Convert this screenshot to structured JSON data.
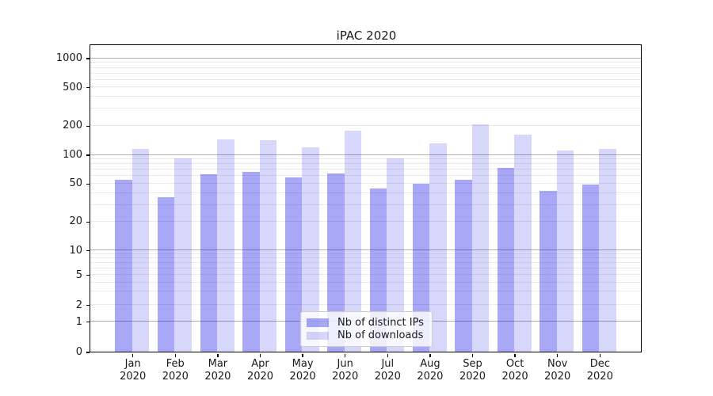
{
  "figure": {
    "background": "#ffffff"
  },
  "chart_data": {
    "type": "bar",
    "title": "iPAC 2020",
    "x_categories": [
      {
        "month": "Jan",
        "year": "2020"
      },
      {
        "month": "Feb",
        "year": "2020"
      },
      {
        "month": "Mar",
        "year": "2020"
      },
      {
        "month": "Apr",
        "year": "2020"
      },
      {
        "month": "May",
        "year": "2020"
      },
      {
        "month": "Jun",
        "year": "2020"
      },
      {
        "month": "Jul",
        "year": "2020"
      },
      {
        "month": "Aug",
        "year": "2020"
      },
      {
        "month": "Sep",
        "year": "2020"
      },
      {
        "month": "Oct",
        "year": "2020"
      },
      {
        "month": "Nov",
        "year": "2020"
      },
      {
        "month": "Dec",
        "year": "2020"
      }
    ],
    "series": [
      {
        "name": "Nb of distinct IPs",
        "color": "#0000e6",
        "alpha": 0.34,
        "solid_hex": "#a8a8f6",
        "values": [
          54,
          36,
          62,
          66,
          58,
          64,
          44,
          50,
          54,
          73,
          42,
          49
        ]
      },
      {
        "name": "Nb of downloads",
        "color": "#0000e6",
        "alpha": 0.155,
        "solid_hex": "#d7d7fb",
        "values": [
          115,
          92,
          144,
          140,
          118,
          176,
          91,
          130,
          205,
          162,
          111,
          115
        ]
      }
    ],
    "y_axis": {
      "scale": "symlog",
      "ylim": [
        0,
        1000
      ],
      "labeled_ticks": [
        1000,
        500,
        200,
        100,
        50,
        20,
        10,
        5,
        2,
        1,
        0
      ],
      "major_gridlines": [
        1,
        10,
        100,
        1000
      ],
      "minor_gridlines": [
        2,
        3,
        4,
        5,
        6,
        7,
        8,
        9,
        20,
        30,
        40,
        50,
        60,
        70,
        80,
        90,
        200,
        300,
        400,
        500,
        600,
        700,
        800,
        900
      ]
    },
    "legend_position": "lower-center"
  },
  "style": {
    "grid_major_color": "#b0b0b0",
    "grid_minor_color": "#eaeaea",
    "spine_color": "#000000",
    "text_color": "#1a1a1a",
    "legend_bg": "rgba(255,255,255,0.8)",
    "legend_border": "#cccccc"
  }
}
